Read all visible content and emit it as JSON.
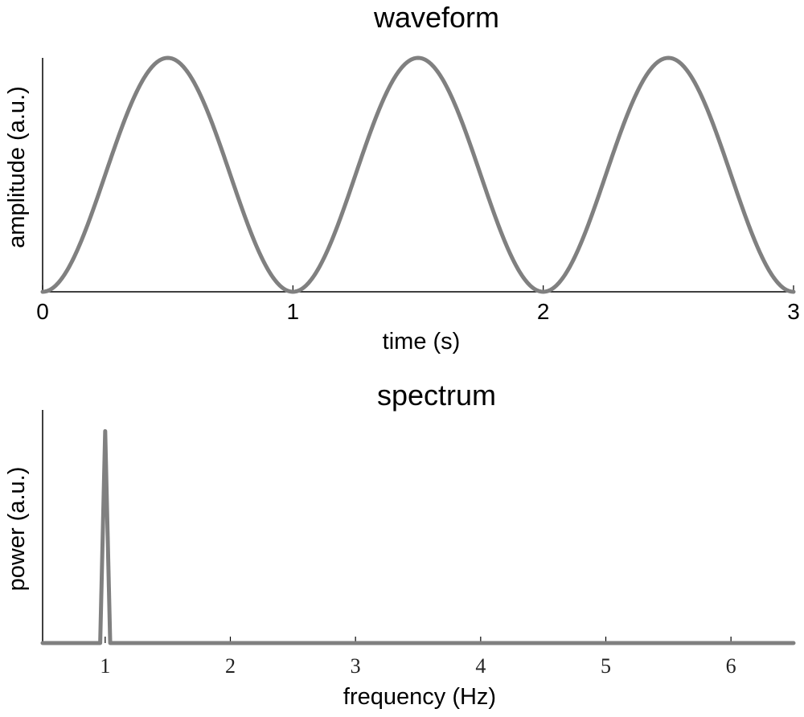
{
  "chart_data": [
    {
      "type": "line",
      "title": "waveform",
      "xlabel": "time (s)",
      "ylabel": "amplitude (a.u.)",
      "xlim": [
        0,
        3
      ],
      "ylim": [
        0,
        1
      ],
      "xticks": [
        "0",
        "1",
        "2",
        "3"
      ],
      "function": "0.5*(1-cos(2*pi*t))",
      "frequency_hz": 1,
      "series_color": "#808080",
      "x": [
        0,
        0.1,
        0.2,
        0.3,
        0.4,
        0.5,
        0.6,
        0.7,
        0.8,
        0.9,
        1.0,
        1.1,
        1.2,
        1.3,
        1.4,
        1.5,
        1.6,
        1.7,
        1.8,
        1.9,
        2.0,
        2.1,
        2.2,
        2.3,
        2.4,
        2.5,
        2.6,
        2.7,
        2.8,
        2.9,
        3.0
      ],
      "y": [
        0,
        0.095,
        0.345,
        0.655,
        0.905,
        1.0,
        0.905,
        0.655,
        0.345,
        0.095,
        0,
        0.095,
        0.345,
        0.655,
        0.905,
        1.0,
        0.905,
        0.655,
        0.345,
        0.095,
        0,
        0.095,
        0.345,
        0.655,
        0.905,
        1.0,
        0.905,
        0.655,
        0.345,
        0.095,
        0
      ],
      "grid": false
    },
    {
      "type": "line",
      "title": "spectrum",
      "xlabel": "frequency (Hz)",
      "ylabel": "power (a.u.)",
      "xlim": [
        0.5,
        6.5
      ],
      "ylim": [
        0,
        1.1
      ],
      "xticks": [
        "1",
        "2",
        "3",
        "4",
        "5",
        "6"
      ],
      "series_color": "#808080",
      "x": [
        0.5,
        0.96,
        1.0,
        1.04,
        6.5
      ],
      "y": [
        0,
        0,
        1.0,
        0,
        0
      ],
      "grid": false
    }
  ]
}
